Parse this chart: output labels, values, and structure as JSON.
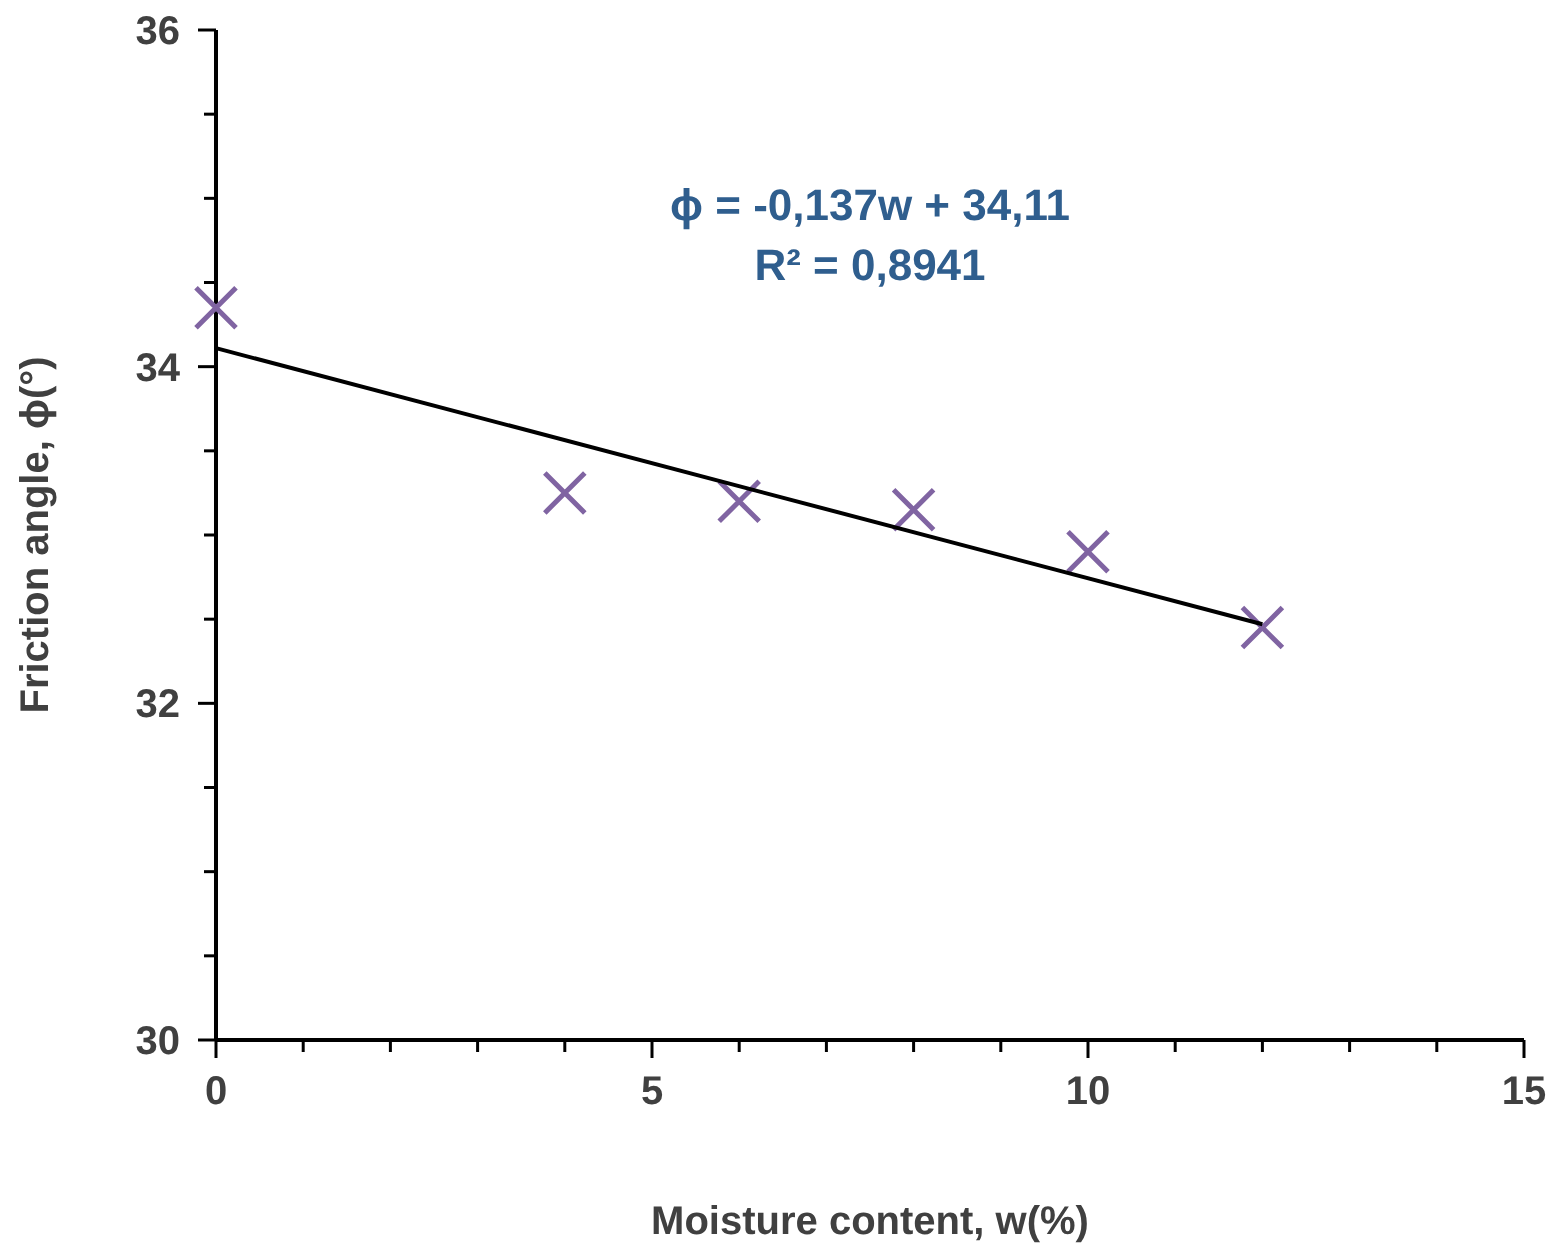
{
  "chart_data": {
    "type": "scatter",
    "xlabel": "Moisture content, w(%)",
    "ylabel": "Friction angle, ϕ(°)",
    "annotations": [
      "ϕ = -0,137w + 34,11",
      "R² = 0,8941"
    ],
    "xlim": [
      0,
      15
    ],
    "ylim": [
      30,
      36
    ],
    "xticks": [
      0,
      {
        "value": 1,
        "label": null
      },
      {
        "value": 2,
        "label": null
      },
      {
        "value": 3,
        "label": null
      },
      {
        "value": 4,
        "label": null
      },
      5,
      {
        "value": 6,
        "label": null
      },
      {
        "value": 7,
        "label": null
      },
      {
        "value": 8,
        "label": null
      },
      {
        "value": 9,
        "label": null
      },
      10,
      {
        "value": 11,
        "label": null
      },
      {
        "value": 12,
        "label": null
      },
      {
        "value": 13,
        "label": null
      },
      {
        "value": 14,
        "label": null
      },
      15
    ],
    "yticks": [
      30,
      {
        "value": 30.5,
        "label": null
      },
      {
        "value": 31,
        "label": null
      },
      {
        "value": 31.5,
        "label": null
      },
      32,
      {
        "value": 32.5,
        "label": null
      },
      {
        "value": 33,
        "label": null
      },
      {
        "value": 33.5,
        "label": null
      },
      34,
      {
        "value": 34.5,
        "label": null
      },
      {
        "value": 35,
        "label": null
      },
      {
        "value": 35.5,
        "label": null
      },
      36
    ],
    "grid": false,
    "series": [
      {
        "type": "scatter",
        "color": "#8064a2",
        "marker": "cross",
        "x": [
          0,
          4,
          6,
          8,
          10,
          12
        ],
        "values": [
          34.35,
          33.25,
          33.2,
          33.15,
          32.9,
          32.45
        ]
      },
      {
        "type": "line",
        "color": "#000000",
        "line_style": "solid",
        "x": [
          0,
          12
        ],
        "values": [
          34.11,
          32.47
        ]
      }
    ]
  }
}
